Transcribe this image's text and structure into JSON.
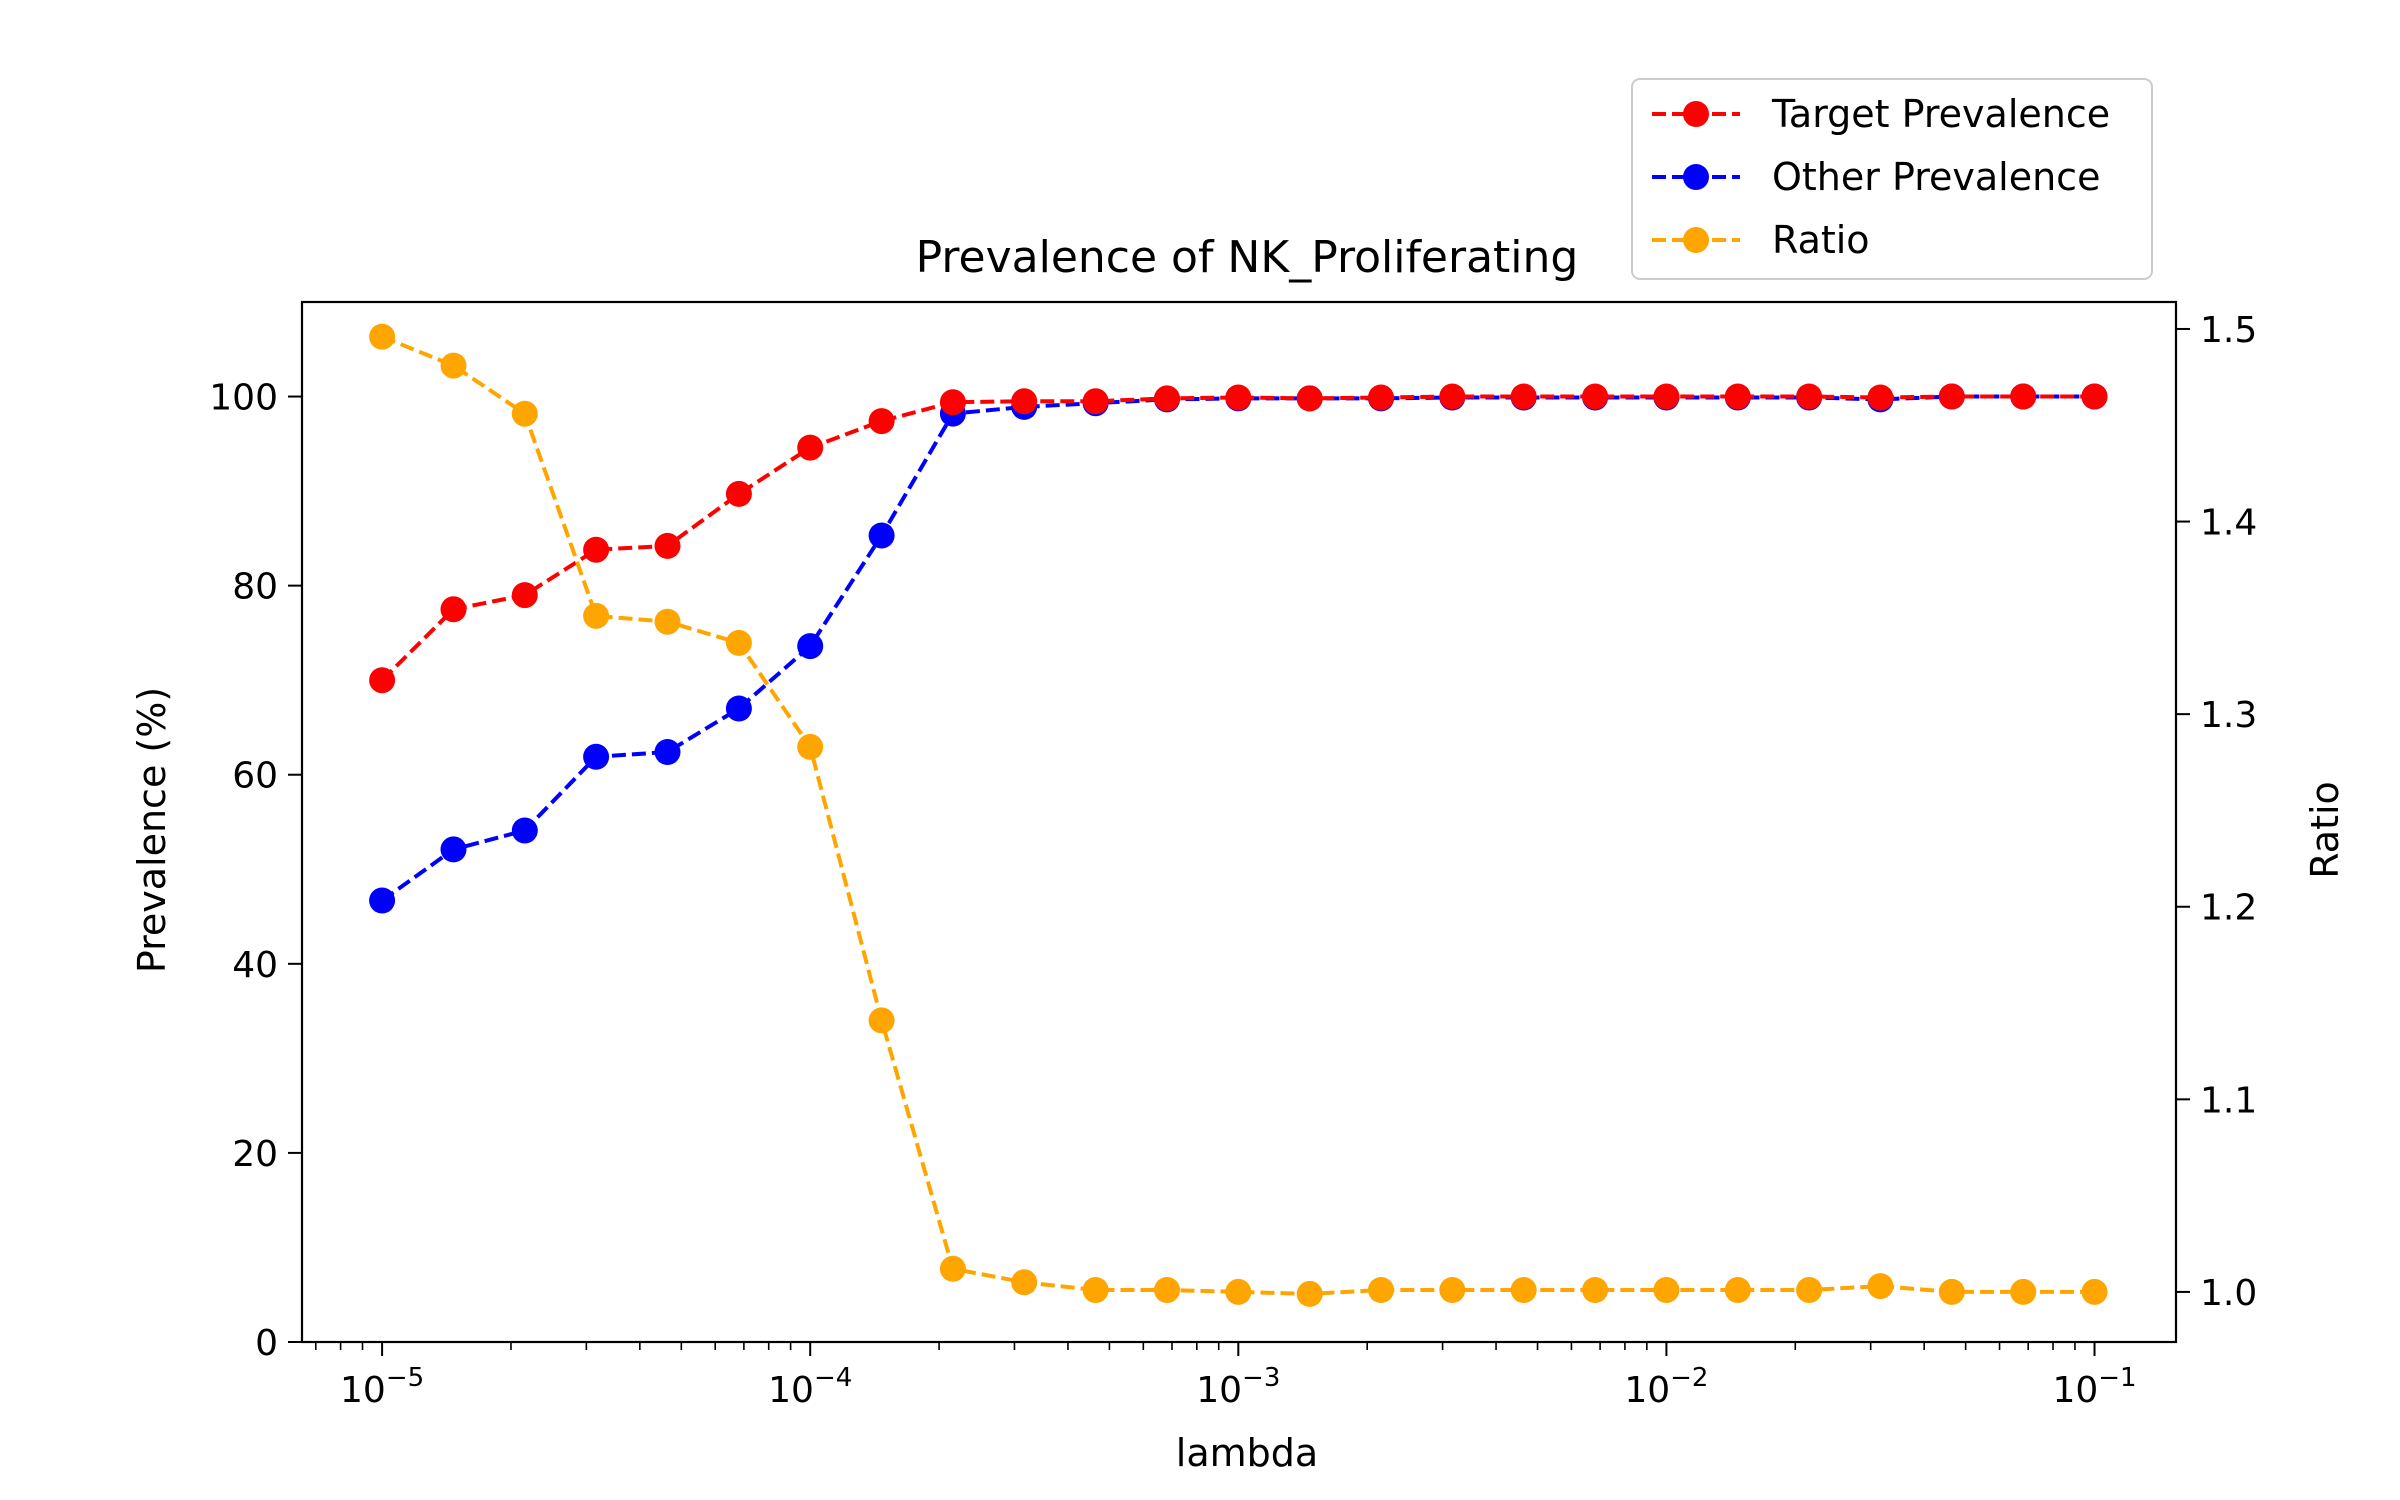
{
  "chart_data": {
    "type": "line",
    "title": "Prevalence of NK_Proliferating",
    "xlabel": "lambda",
    "ylabel": "Prevalence (%)",
    "y2label": "Ratio",
    "xscale": "log",
    "xlim": [
      6.5e-06,
      0.155
    ],
    "ylim": [
      0,
      110
    ],
    "y2lim": [
      0.974,
      1.514
    ],
    "x_ticks": [
      {
        "base": "10",
        "exp": "−5"
      },
      {
        "base": "10",
        "exp": "−4"
      },
      {
        "base": "10",
        "exp": "−3"
      },
      {
        "base": "10",
        "exp": "−2"
      },
      {
        "base": "10",
        "exp": "−1"
      }
    ],
    "y_ticks": [
      "0",
      "20",
      "40",
      "60",
      "80",
      "100"
    ],
    "y2_ticks": [
      "1.0",
      "1.1",
      "1.2",
      "1.3",
      "1.4",
      "1.5"
    ],
    "legend_position": "top-right",
    "x": [
      1e-05,
      1.468e-05,
      2.154e-05,
      3.162e-05,
      4.642e-05,
      6.813e-05,
      0.0001,
      0.0001468,
      0.0002154,
      0.0003162,
      0.0004642,
      0.0006813,
      0.001,
      0.001468,
      0.002154,
      0.003162,
      0.004642,
      0.006813,
      0.01,
      0.01468,
      0.02154,
      0.03162,
      0.04642,
      0.06813,
      0.1
    ],
    "series": [
      {
        "name": "Target Prevalence",
        "color": "#ff0000",
        "axis": "left",
        "values": [
          70.0,
          77.5,
          79.0,
          83.8,
          84.2,
          89.7,
          94.6,
          97.4,
          99.4,
          99.5,
          99.5,
          99.8,
          99.9,
          99.8,
          99.9,
          100.0,
          100.0,
          100.0,
          100.0,
          100.0,
          100.0,
          99.9,
          100.0,
          100.0,
          100.0
        ]
      },
      {
        "name": "Other Prevalence",
        "color": "#0000ff",
        "axis": "left",
        "values": [
          46.7,
          52.1,
          54.1,
          61.9,
          62.4,
          67.0,
          73.6,
          85.3,
          98.2,
          98.9,
          99.3,
          99.7,
          99.8,
          99.8,
          99.8,
          99.9,
          99.9,
          99.9,
          99.9,
          99.9,
          99.9,
          99.7,
          100.0,
          100.0,
          100.0
        ]
      },
      {
        "name": "Ratio",
        "color": "#ffa500",
        "axis": "right",
        "values": [
          1.496,
          1.481,
          1.456,
          1.351,
          1.348,
          1.337,
          1.283,
          1.141,
          1.012,
          1.005,
          1.001,
          1.001,
          1.0,
          0.999,
          1.001,
          1.001,
          1.001,
          1.001,
          1.001,
          1.001,
          1.001,
          1.003,
          1.0,
          1.0,
          1.0
        ]
      }
    ]
  }
}
